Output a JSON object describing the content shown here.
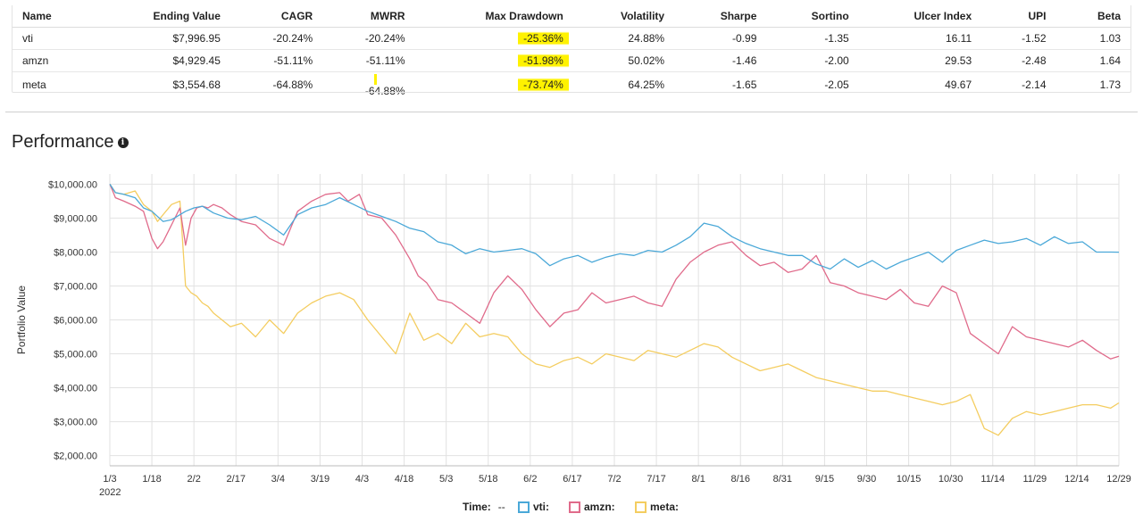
{
  "stats_table": {
    "columns": [
      "Name",
      "Ending Value",
      "CAGR",
      "MWRR",
      "Max Drawdown",
      "Volatility",
      "Sharpe",
      "Sortino",
      "Ulcer Index",
      "UPI",
      "Beta"
    ],
    "rows": [
      {
        "name": "vti",
        "ending_value": "$7,996.95",
        "cagr": "-20.24%",
        "mwrr": "-20.24%",
        "max_drawdown": "-25.36%",
        "volatility": "24.88%",
        "sharpe": "-0.99",
        "sortino": "-1.35",
        "ulcer_index": "16.11",
        "upi": "-1.52",
        "beta": "1.03"
      },
      {
        "name": "amzn",
        "ending_value": "$4,929.45",
        "cagr": "-51.11%",
        "mwrr": "-51.11%",
        "max_drawdown": "-51.98%",
        "volatility": "50.02%",
        "sharpe": "-1.46",
        "sortino": "-2.00",
        "ulcer_index": "29.53",
        "upi": "-2.48",
        "beta": "1.64"
      },
      {
        "name": "meta",
        "ending_value": "$3,554.68",
        "cagr": "-64.88%",
        "mwrr": "-64.88%",
        "max_drawdown": "-73.74%",
        "volatility": "64.25%",
        "sharpe": "-1.65",
        "sortino": "-2.05",
        "ulcer_index": "49.67",
        "upi": "-2.14",
        "beta": "1.73"
      }
    ]
  },
  "performance": {
    "title": "Performance",
    "info_icon": "info-icon"
  },
  "colors": {
    "vti": "#4aa8d8",
    "amzn": "#e06b8b",
    "meta": "#f4cd60",
    "highlight": "#fff200"
  },
  "legend": {
    "time_label": "Time:",
    "time_value": "--",
    "vti_label": "vti:",
    "amzn_label": "amzn:",
    "meta_label": "meta:"
  },
  "chart_data": {
    "type": "line",
    "ylabel": "Portfolio Value",
    "xlabel": "",
    "ylim": [
      1700,
      10300
    ],
    "y_ticks": [
      2000,
      3000,
      4000,
      5000,
      6000,
      7000,
      8000,
      9000,
      10000
    ],
    "y_tick_labels": [
      "$2,000.00",
      "$3,000.00",
      "$4,000.00",
      "$5,000.00",
      "$6,000.00",
      "$7,000.00",
      "$8,000.00",
      "$9,000.00",
      "$10,000.00"
    ],
    "x_range": [
      3,
      363
    ],
    "x_ticks": [
      3,
      18,
      33,
      48,
      63,
      78,
      93,
      108,
      123,
      138,
      153,
      168,
      183,
      198,
      213,
      228,
      243,
      258,
      273,
      288,
      303,
      318,
      333,
      348,
      363
    ],
    "x_tick_labels": [
      "1/3",
      "1/18",
      "2/2",
      "2/17",
      "3/4",
      "3/19",
      "4/3",
      "4/18",
      "5/3",
      "5/18",
      "6/2",
      "6/17",
      "7/2",
      "7/17",
      "8/1",
      "8/16",
      "8/31",
      "9/15",
      "9/30",
      "10/15",
      "10/30",
      "11/14",
      "11/29",
      "12/14",
      "12/29"
    ],
    "x_sub_label": "2022",
    "grid": true,
    "series": [
      {
        "name": "vti",
        "x": [
          3,
          5,
          8,
          12,
          15,
          18,
          22,
          25,
          30,
          33,
          36,
          40,
          45,
          50,
          55,
          60,
          65,
          70,
          75,
          80,
          85,
          90,
          95,
          100,
          105,
          110,
          115,
          120,
          125,
          130,
          135,
          140,
          145,
          150,
          155,
          160,
          165,
          170,
          175,
          180,
          185,
          190,
          195,
          200,
          205,
          210,
          215,
          220,
          225,
          230,
          235,
          240,
          245,
          250,
          255,
          260,
          265,
          270,
          275,
          280,
          285,
          290,
          295,
          300,
          305,
          310,
          315,
          320,
          325,
          330,
          335,
          340,
          345,
          350,
          355,
          360,
          363
        ],
        "y": [
          10000,
          9750,
          9700,
          9600,
          9300,
          9200,
          8900,
          8950,
          9200,
          9300,
          9350,
          9150,
          9000,
          8950,
          9050,
          8800,
          8500,
          9100,
          9300,
          9400,
          9600,
          9400,
          9200,
          9050,
          8900,
          8700,
          8600,
          8300,
          8200,
          7950,
          8100,
          8000,
          8050,
          8100,
          7950,
          7600,
          7800,
          7900,
          7700,
          7850,
          7950,
          7900,
          8050,
          8000,
          8200,
          8450,
          8850,
          8750,
          8450,
          8250,
          8100,
          8000,
          7900,
          7900,
          7650,
          7500,
          7800,
          7550,
          7750,
          7500,
          7700,
          7850,
          8000,
          7700,
          8050,
          8200,
          8350,
          8250,
          8300,
          8400,
          8200,
          8450,
          8250,
          8300,
          8000,
          8000,
          7997
        ]
      },
      {
        "name": "amzn",
        "x": [
          3,
          5,
          8,
          12,
          15,
          18,
          20,
          22,
          25,
          28,
          30,
          32,
          34,
          36,
          38,
          40,
          43,
          46,
          50,
          55,
          60,
          65,
          70,
          75,
          80,
          85,
          88,
          92,
          95,
          100,
          105,
          110,
          113,
          116,
          120,
          125,
          130,
          135,
          140,
          145,
          150,
          155,
          160,
          165,
          170,
          175,
          180,
          185,
          190,
          195,
          200,
          205,
          210,
          215,
          220,
          225,
          230,
          235,
          240,
          245,
          250,
          255,
          260,
          265,
          270,
          275,
          280,
          285,
          290,
          295,
          300,
          305,
          310,
          315,
          320,
          325,
          330,
          335,
          340,
          345,
          350,
          355,
          360,
          363
        ],
        "y": [
          10000,
          9600,
          9500,
          9350,
          9200,
          8400,
          8100,
          8300,
          8800,
          9300,
          8200,
          9000,
          9300,
          9350,
          9300,
          9400,
          9300,
          9100,
          8900,
          8800,
          8400,
          8200,
          9200,
          9500,
          9700,
          9750,
          9500,
          9700,
          9100,
          9000,
          8500,
          7800,
          7300,
          7100,
          6600,
          6500,
          6200,
          5900,
          6800,
          7300,
          6900,
          6300,
          5800,
          6200,
          6300,
          6800,
          6500,
          6600,
          6700,
          6500,
          6400,
          7200,
          7700,
          8000,
          8200,
          8300,
          7900,
          7600,
          7700,
          7400,
          7500,
          7900,
          7100,
          7000,
          6800,
          6700,
          6600,
          6900,
          6500,
          6400,
          7000,
          6800,
          5600,
          5300,
          5000,
          5800,
          5500,
          5400,
          5300,
          5200,
          5400,
          5100,
          4850,
          4929
        ]
      },
      {
        "name": "meta",
        "x": [
          3,
          5,
          8,
          12,
          15,
          18,
          20,
          22,
          25,
          28,
          30,
          32,
          34,
          36,
          38,
          40,
          43,
          46,
          50,
          55,
          60,
          65,
          70,
          75,
          80,
          85,
          90,
          95,
          100,
          105,
          110,
          115,
          120,
          125,
          130,
          135,
          140,
          145,
          150,
          155,
          160,
          165,
          170,
          175,
          180,
          185,
          190,
          195,
          200,
          205,
          210,
          215,
          220,
          225,
          230,
          235,
          240,
          245,
          250,
          255,
          260,
          265,
          270,
          275,
          280,
          285,
          290,
          295,
          300,
          305,
          310,
          315,
          320,
          325,
          330,
          335,
          340,
          345,
          350,
          355,
          360,
          363
        ],
        "y": [
          10000,
          9750,
          9700,
          9800,
          9400,
          9200,
          8900,
          9100,
          9400,
          9500,
          7000,
          6800,
          6700,
          6500,
          6400,
          6200,
          6000,
          5800,
          5900,
          5500,
          6000,
          5600,
          6200,
          6500,
          6700,
          6800,
          6600,
          6000,
          5500,
          5000,
          6200,
          5400,
          5600,
          5300,
          5900,
          5500,
          5600,
          5500,
          5000,
          4700,
          4600,
          4800,
          4900,
          4700,
          5000,
          4900,
          4800,
          5100,
          5000,
          4900,
          5100,
          5300,
          5200,
          4900,
          4700,
          4500,
          4600,
          4700,
          4500,
          4300,
          4200,
          4100,
          4000,
          3900,
          3900,
          3800,
          3700,
          3600,
          3500,
          3600,
          3800,
          2800,
          2600,
          3100,
          3300,
          3200,
          3300,
          3400,
          3500,
          3500,
          3400,
          3555
        ]
      }
    ]
  }
}
